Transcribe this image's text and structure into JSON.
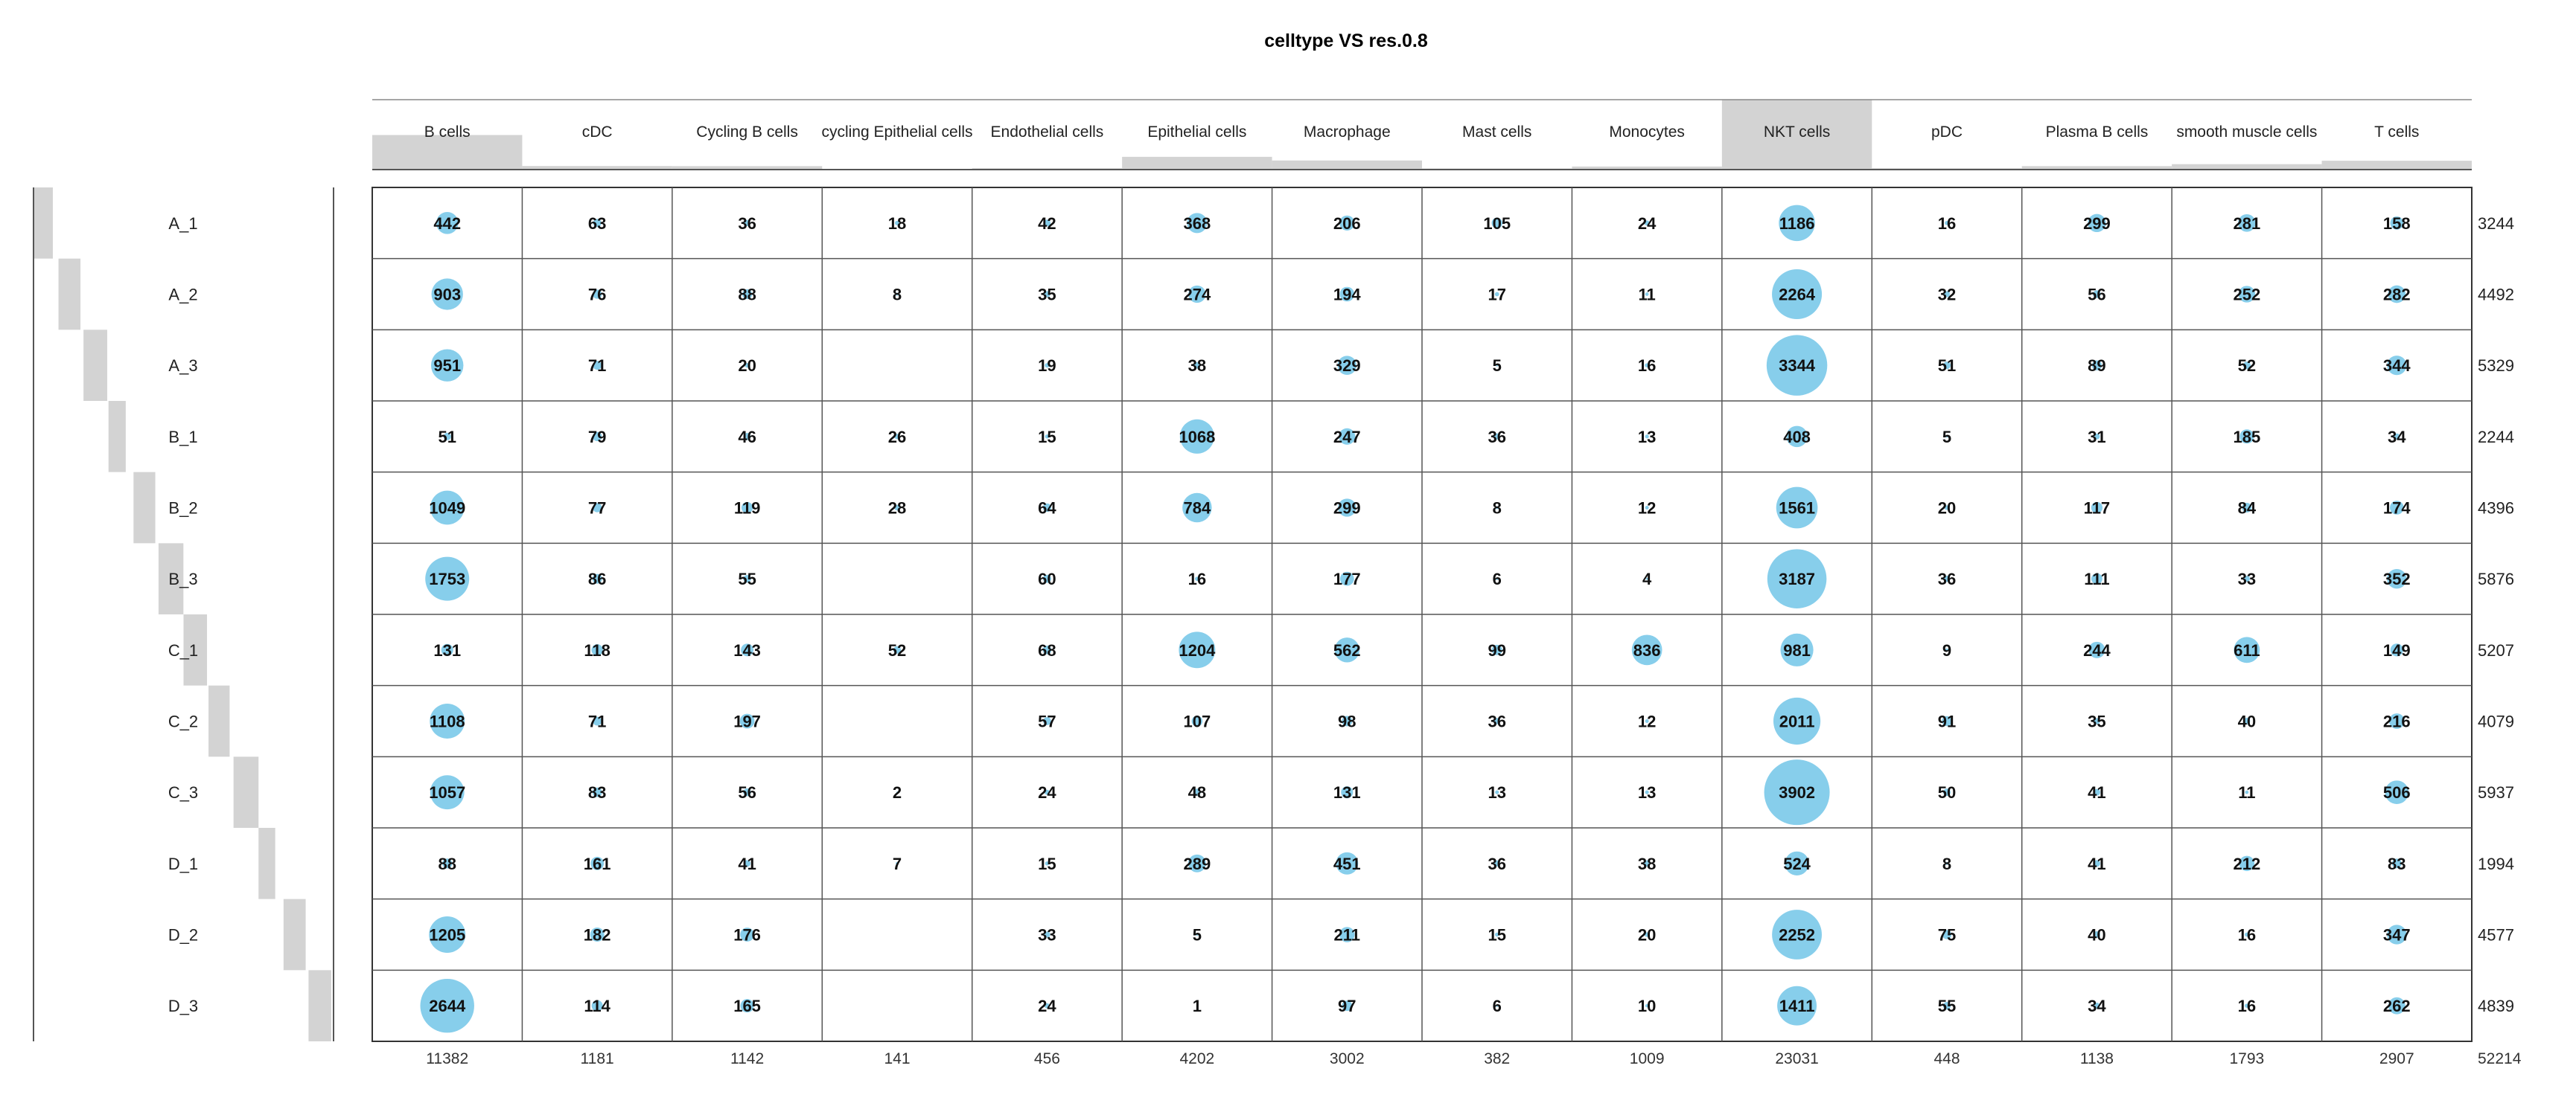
{
  "chart_data": {
    "type": "table",
    "title": "celltype VS  res.0.8",
    "columns": [
      "B cells",
      "cDC",
      "Cycling B cells",
      "cycling Epithelial cells",
      "Endothelial cells",
      "Epithelial cells",
      "Macrophage",
      "Mast cells",
      "Monocytes",
      "NKT cells",
      "pDC",
      "Plasma B cells",
      "smooth muscle cells",
      "T cells"
    ],
    "rows": [
      "A_1",
      "A_2",
      "A_3",
      "B_1",
      "B_2",
      "B_3",
      "C_1",
      "C_2",
      "C_3",
      "D_1",
      "D_2",
      "D_3"
    ],
    "values": [
      [
        442,
        63,
        36,
        18,
        42,
        368,
        206,
        105,
        24,
        1186,
        16,
        299,
        281,
        158
      ],
      [
        903,
        76,
        88,
        8,
        35,
        274,
        194,
        17,
        11,
        2264,
        32,
        56,
        252,
        282
      ],
      [
        951,
        71,
        20,
        null,
        19,
        38,
        329,
        5,
        16,
        3344,
        51,
        89,
        52,
        344
      ],
      [
        51,
        79,
        46,
        26,
        15,
        1068,
        247,
        36,
        13,
        408,
        5,
        31,
        185,
        34
      ],
      [
        1049,
        77,
        119,
        28,
        64,
        784,
        299,
        8,
        12,
        1561,
        20,
        117,
        84,
        174
      ],
      [
        1753,
        86,
        55,
        null,
        60,
        16,
        177,
        6,
        4,
        3187,
        36,
        111,
        33,
        352
      ],
      [
        131,
        118,
        143,
        52,
        68,
        1204,
        562,
        99,
        836,
        981,
        9,
        244,
        611,
        149
      ],
      [
        1108,
        71,
        197,
        null,
        57,
        107,
        98,
        36,
        12,
        2011,
        91,
        35,
        40,
        216
      ],
      [
        1057,
        83,
        56,
        2,
        24,
        48,
        131,
        13,
        13,
        3902,
        50,
        41,
        11,
        506
      ],
      [
        88,
        161,
        41,
        7,
        15,
        289,
        451,
        36,
        38,
        524,
        8,
        41,
        212,
        83
      ],
      [
        1205,
        182,
        176,
        null,
        33,
        5,
        211,
        15,
        20,
        2252,
        75,
        40,
        16,
        347
      ],
      [
        2644,
        114,
        165,
        null,
        24,
        1,
        97,
        6,
        10,
        1411,
        55,
        34,
        16,
        262
      ]
    ],
    "row_totals": [
      3244,
      4492,
      5329,
      2244,
      4396,
      5876,
      5207,
      4079,
      5937,
      1994,
      4577,
      4839
    ],
    "column_totals": [
      11382,
      1181,
      1142,
      141,
      456,
      4202,
      3002,
      382,
      1009,
      23031,
      448,
      1138,
      1793,
      2907
    ],
    "grand_total": 52214,
    "bubble_color": "#87CEEB",
    "bar_color": "#D3D3D3",
    "grid": true
  }
}
